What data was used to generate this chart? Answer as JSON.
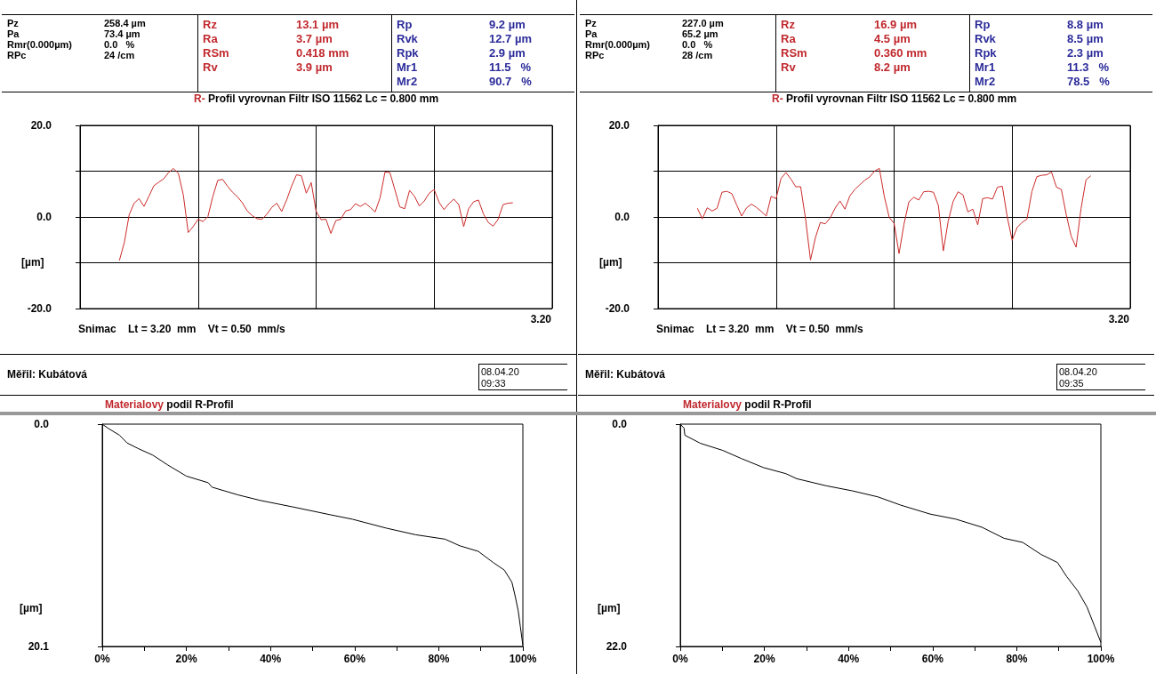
{
  "chart_data": [
    {
      "type": "line",
      "title": "R- Profil vyrovnan Filtr ISO 11562 Lc = 0.800 mm",
      "ylabel": "[µm]",
      "ylim": [
        -20,
        20
      ],
      "categories": [
        null,
        null,
        null,
        null,
        null,
        null,
        null,
        null,
        null,
        null,
        null,
        null,
        null,
        null,
        null,
        null,
        null,
        null,
        null,
        null,
        null,
        null,
        null,
        null,
        null,
        null,
        null,
        null,
        null,
        null,
        null,
        null,
        null,
        null,
        null,
        null,
        null,
        null,
        null,
        null,
        null,
        null,
        null,
        null,
        null,
        null,
        null,
        null,
        null,
        null,
        null,
        null,
        null,
        null,
        null,
        null,
        null,
        null,
        null,
        null,
        null,
        null,
        null,
        null,
        null,
        null,
        null,
        null,
        null,
        null,
        null,
        null,
        null,
        null,
        null,
        null,
        null,
        null,
        null,
        null,
        null,
        null,
        null,
        null,
        null,
        null,
        null,
        null,
        null,
        null,
        null,
        null,
        null,
        null,
        null,
        null,
        null
      ],
      "yticks": [
        {
          "value": -20,
          "label": "-20.0"
        },
        {
          "value": -10,
          "label": null
        },
        {
          "value": 0,
          "label": "0.0"
        },
        {
          "value": 10,
          "label": null
        },
        {
          "value": 20,
          "label": "20.0"
        }
      ],
      "grid": true,
      "annotations": [
        "Pz",
        "258.4 µm",
        "Pa",
        "73.4 µm",
        "Rmr(0.000µm)",
        "0.0   %",
        "RPc",
        "24 /cm",
        "Rz",
        "13.1 µm",
        "Ra",
        "3.7 µm",
        "RSm",
        "0.418 mm",
        "Rv",
        "3.9 µm",
        "Rp",
        "9.2 µm",
        "Rvk",
        "12.7 µm",
        "Rpk",
        "2.9 µm",
        "Mr1",
        "11.5   %",
        "Mr2",
        "90.7   %",
        "Snimac    Lt = 3.20  mm    Vt = 0.50  mm/s",
        "Měřil: Kubátová",
        "08.04.20",
        "09:33",
        "3.20"
      ],
      "series": [
        {
          "color": "#cc2a2a",
          "values": [
            null,
            null,
            null,
            null,
            null,
            null,
            null,
            null,
            -9.5,
            -5.6,
            0.5,
            3.0,
            4.0,
            2.3,
            4.5,
            6.8,
            7.6,
            8.3,
            9.7,
            10.6,
            9.5,
            4.8,
            -3.4,
            -2.1,
            -0.5,
            -1.0,
            0.1,
            4.5,
            8.0,
            8.2,
            6.7,
            5.4,
            4.4,
            3.1,
            1.3,
            0.3,
            -0.4,
            -0.5,
            0.6,
            2.1,
            3.0,
            1.2,
            3.7,
            6.7,
            9.2,
            9.0,
            5.2,
            7.5,
            1.2,
            -0.6,
            -0.5,
            -3.6,
            -0.8,
            -0.5,
            1.3,
            1.6,
            2.9,
            2.3,
            3.0,
            2.1,
            1.1,
            4.2,
            9.8,
            9.7,
            6.0,
            2.2,
            1.8,
            5.8,
            4.5,
            2.4,
            3.5,
            5.2,
            6.0,
            3.2,
            1.6,
            2.9,
            3.9,
            2.7,
            -2.1,
            1.8,
            3.3,
            3.7,
            0.7,
            -1.2,
            -2.0,
            -0.5,
            2.7,
            3.0,
            3.1,
            null,
            null,
            null,
            null,
            null,
            null,
            null,
            null
          ]
        }
      ]
    },
    {
      "type": "line",
      "title": "R- Profil vyrovnan Filtr ISO 11562 Lc = 0.800 mm",
      "ylabel": "[µm]",
      "ylim": [
        -20,
        20
      ],
      "categories": [
        null,
        null,
        null,
        null,
        null,
        null,
        null,
        null,
        null,
        null,
        null,
        null,
        null,
        null,
        null,
        null,
        null,
        null,
        null,
        null,
        null,
        null,
        null,
        null,
        null,
        null,
        null,
        null,
        null,
        null,
        null,
        null,
        null,
        null,
        null,
        null,
        null,
        null,
        null,
        null,
        null,
        null,
        null,
        null,
        null,
        null,
        null,
        null,
        null,
        null,
        null,
        null,
        null,
        null,
        null,
        null,
        null,
        null,
        null,
        null,
        null,
        null,
        null,
        null,
        null,
        null,
        null,
        null,
        null,
        null,
        null,
        null,
        null,
        null,
        null,
        null,
        null,
        null,
        null,
        null,
        null,
        null,
        null,
        null,
        null,
        null,
        null,
        null,
        null,
        null,
        null,
        null,
        null,
        null,
        null,
        null,
        null
      ],
      "yticks": [
        {
          "value": -20,
          "label": "-20.0"
        },
        {
          "value": -10,
          "label": null
        },
        {
          "value": 0,
          "label": "0.0"
        },
        {
          "value": 10,
          "label": null
        },
        {
          "value": 20,
          "label": "20.0"
        }
      ],
      "grid": true,
      "annotations": [
        "Pz",
        "227.0 µm",
        "Pa",
        "65.2 µm",
        "Rmr(0.000µm)",
        "0.0   %",
        "RPc",
        "28 /cm",
        "Rz",
        "16.9 µm",
        "Ra",
        "4.5 µm",
        "RSm",
        "0.360 mm",
        "Rv",
        "8.2 µm",
        "Rp",
        "8.8 µm",
        "Rvk",
        "8.5 µm",
        "Rpk",
        "2.3 µm",
        "Mr1",
        "11.3   %",
        "Mr2",
        "78.5   %",
        "Snimac    Lt = 3.20  mm    Vt = 0.50  mm/s",
        "Měřil: Kubátová",
        "08.04.20",
        "09:35",
        "3.20"
      ],
      "series": [
        {
          "color": "#cc2a2a",
          "values": [
            null,
            null,
            null,
            null,
            null,
            null,
            null,
            null,
            1.9,
            -0.4,
            2.0,
            1.3,
            1.9,
            5.4,
            5.6,
            5.1,
            2.6,
            0.2,
            2.0,
            2.8,
            2.1,
            1.2,
            0.2,
            4.5,
            4.0,
            8.4,
            9.7,
            8.3,
            6.6,
            6.6,
            -0.5,
            -9.4,
            -4.5,
            -1.2,
            -1.5,
            -0.2,
            1.9,
            3.5,
            1.7,
            4.6,
            6.0,
            7.0,
            8.0,
            8.7,
            10.0,
            10.6,
            4.5,
            -0.1,
            -1.4,
            -8.0,
            -1.6,
            3.3,
            4.3,
            3.7,
            5.5,
            5.6,
            5.4,
            2.5,
            -7.4,
            -0.9,
            3.4,
            5.5,
            4.8,
            1.1,
            1.7,
            -1.7,
            4.0,
            4.2,
            3.9,
            6.5,
            6.7,
            0.0,
            -5.1,
            -2.3,
            -1.2,
            -0.5,
            5.5,
            8.8,
            9.1,
            9.2,
            9.8,
            6.5,
            6.0,
            0.5,
            -4.2,
            -6.6,
            1.8,
            8.1,
            9.0,
            null,
            null,
            null,
            null,
            null,
            null,
            null,
            null
          ]
        }
      ]
    },
    {
      "type": "line",
      "title": "Materialovy podil R-Profil",
      "ylabel": "[µm]",
      "xlim": [
        0,
        100
      ],
      "ylim": [
        20.1,
        0
      ],
      "xticks": [
        {
          "value": 0,
          "label": "0%"
        },
        {
          "value": 10,
          "label": null
        },
        {
          "value": 20,
          "label": "20%"
        },
        {
          "value": 30,
          "label": null
        },
        {
          "value": 40,
          "label": "40%"
        },
        {
          "value": 50,
          "label": null
        },
        {
          "value": 60,
          "label": "60%"
        },
        {
          "value": 70,
          "label": null
        },
        {
          "value": 80,
          "label": "80%"
        },
        {
          "value": 90,
          "label": null
        },
        {
          "value": 100,
          "label": "100%"
        }
      ],
      "yticks": [
        {
          "value": 0,
          "label": "0.0"
        },
        {
          "value": 20.1,
          "label": "20.1"
        }
      ],
      "series": [
        {
          "color": "#000000",
          "x": [
            0,
            1.5,
            4.1,
            5.9,
            8.5,
            12.0,
            15.6,
            20.0,
            25.2,
            26.1,
            32.3,
            37.6,
            45.5,
            54.3,
            59.5,
            67.5,
            74.5,
            81.5,
            85.0,
            89.4,
            92.9,
            95.6,
            97.4,
            98.2,
            98.9,
            99.4,
            100
          ],
          "values": [
            0,
            0.4,
            1.0,
            1.7,
            2.2,
            2.8,
            3.7,
            4.7,
            5.3,
            5.7,
            6.4,
            6.9,
            7.5,
            8.2,
            8.6,
            9.4,
            10.0,
            10.4,
            11.0,
            11.5,
            12.5,
            13.2,
            14.3,
            15.6,
            16.9,
            18.3,
            20.0
          ]
        }
      ]
    },
    {
      "type": "line",
      "title": "Materialovy podil R-Profil",
      "ylabel": "[µm]",
      "xlim": [
        0,
        100
      ],
      "ylim": [
        22.0,
        0
      ],
      "xticks": [
        {
          "value": 0,
          "label": "0%"
        },
        {
          "value": 10,
          "label": null
        },
        {
          "value": 20,
          "label": "20%"
        },
        {
          "value": 30,
          "label": null
        },
        {
          "value": 40,
          "label": "40%"
        },
        {
          "value": 50,
          "label": null
        },
        {
          "value": 60,
          "label": "60%"
        },
        {
          "value": 70,
          "label": null
        },
        {
          "value": 80,
          "label": "80%"
        },
        {
          "value": 90,
          "label": null
        },
        {
          "value": 100,
          "label": "100%"
        }
      ],
      "yticks": [
        {
          "value": 0,
          "label": "0.0"
        },
        {
          "value": 22,
          "label": "22.0"
        }
      ],
      "series": [
        {
          "color": "#000000",
          "x": [
            0,
            0.9,
            1.1,
            4.8,
            10.1,
            14.5,
            19.8,
            25.1,
            27.7,
            34.7,
            40.9,
            47.0,
            52.3,
            59.4,
            65.5,
            71.7,
            77.0,
            81.4,
            85.8,
            89.7,
            91.9,
            94.5,
            96.7,
            98.5,
            100
          ],
          "values": [
            0,
            0.4,
            1.1,
            1.9,
            2.6,
            3.4,
            4.3,
            4.9,
            5.4,
            6.1,
            6.6,
            7.2,
            8.0,
            8.9,
            9.4,
            10.2,
            11.3,
            11.7,
            12.9,
            13.7,
            15.1,
            16.5,
            18.1,
            20.0,
            21.6
          ]
        }
      ]
    }
  ]
}
